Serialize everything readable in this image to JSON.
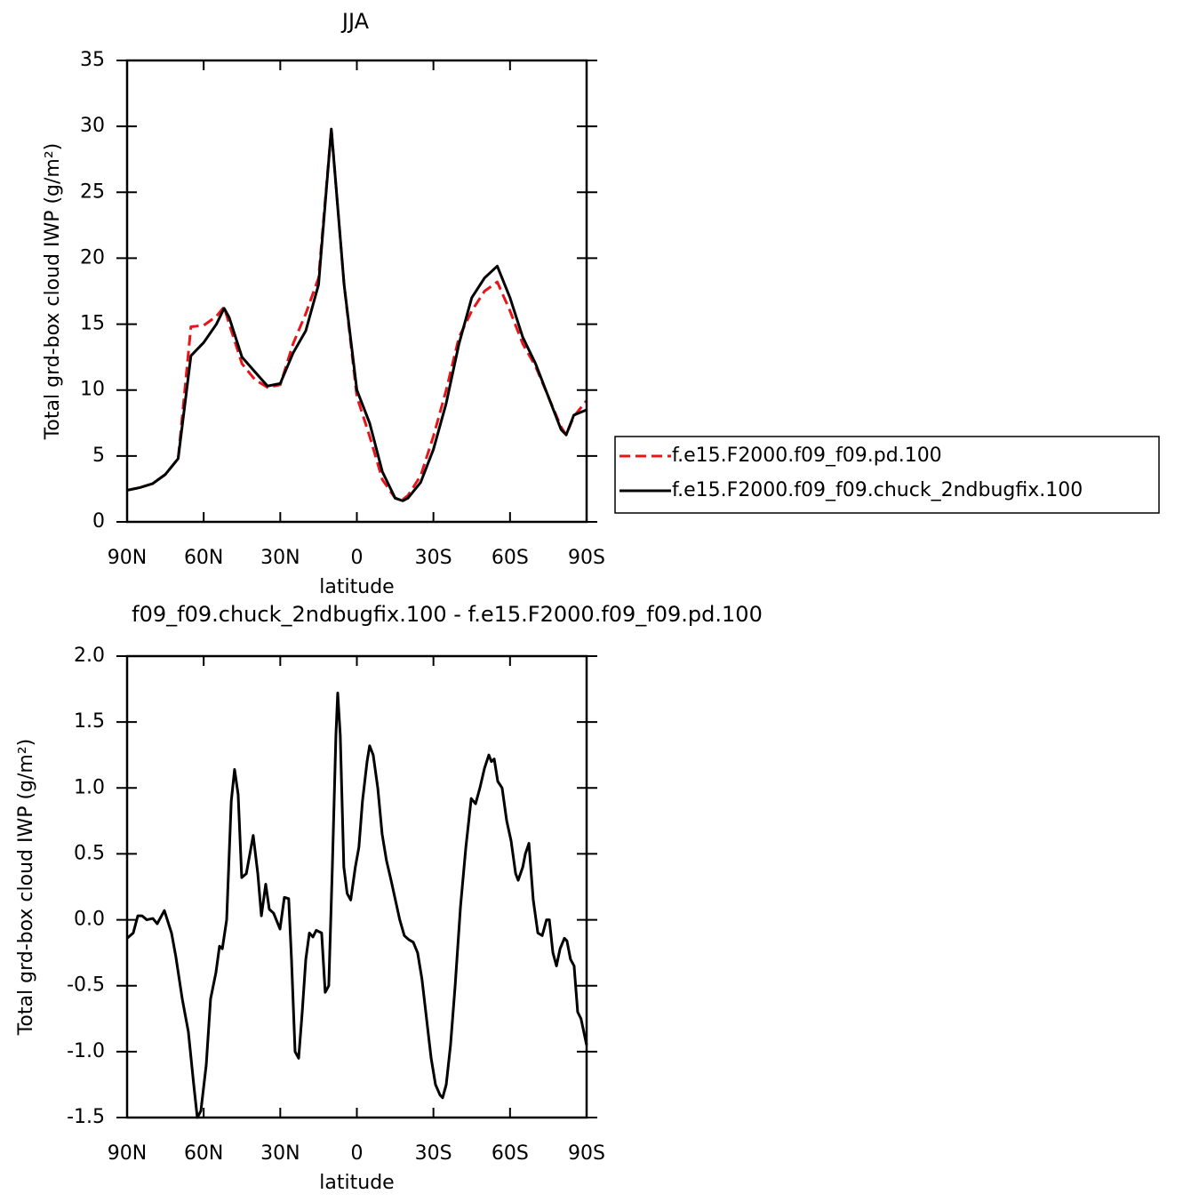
{
  "chart_data": [
    {
      "type": "line",
      "title": "JJA",
      "xlabel": "latitude",
      "ylabel": "Total grd-box cloud IWP (g/m²)",
      "x": [
        90,
        85,
        80,
        75,
        70,
        65,
        60,
        55,
        52,
        50,
        45,
        40,
        35,
        30,
        25,
        20,
        15,
        10,
        5,
        0,
        -5,
        -10,
        -15,
        -18,
        -20,
        -25,
        -30,
        -35,
        -40,
        -45,
        -50,
        -55,
        -60,
        -65,
        -70,
        -75,
        -80,
        -82,
        -85,
        -90
      ],
      "series": [
        {
          "name": "f.e15.F2000.f09_f09.pd.100",
          "color": "#e8141a",
          "dash": true,
          "values": [
            2.4,
            2.6,
            2.9,
            3.6,
            4.8,
            14.8,
            14.9,
            15.6,
            16.3,
            15.0,
            12.0,
            10.8,
            10.2,
            10.4,
            13.5,
            15.8,
            18.5,
            29.8,
            18,
            9.5,
            6.5,
            3.2,
            1.8,
            1.7,
            2.0,
            3.5,
            6.5,
            10,
            14,
            16,
            17.5,
            18.2,
            16,
            13.5,
            11.8,
            9.5,
            7.2,
            6.6,
            8.0,
            9.2
          ]
        },
        {
          "name": "f.e15.F2000.f09_f09.chuck_2ndbugfix.100",
          "color": "#000000",
          "dash": false,
          "values": [
            2.4,
            2.6,
            2.9,
            3.6,
            4.8,
            12.6,
            13.6,
            15.0,
            16.2,
            15.5,
            12.5,
            11.4,
            10.3,
            10.5,
            12.8,
            14.5,
            18,
            29.8,
            18,
            10,
            7.5,
            3.8,
            1.8,
            1.6,
            1.8,
            3.0,
            5.5,
            9,
            13.5,
            17,
            18.5,
            19.4,
            17,
            14,
            12,
            9.5,
            7,
            6.6,
            8.1,
            8.5
          ]
        }
      ],
      "xlim": [
        90,
        -90
      ],
      "xticks": [
        {
          "value": 90,
          "label": "90N"
        },
        {
          "value": 60,
          "label": "60N"
        },
        {
          "value": 30,
          "label": "30N"
        },
        0,
        {
          "value": -30,
          "label": "30S"
        },
        {
          "value": -60,
          "label": "60S"
        },
        {
          "value": -90,
          "label": "90S"
        }
      ],
      "ylim": [
        0,
        35
      ],
      "yticks": [
        0,
        5,
        10,
        15,
        20,
        25,
        30,
        35
      ],
      "legend": "right"
    },
    {
      "type": "line",
      "title": "f09_f09.chuck_2ndbugfix.100 - f.e15.F2000.f09_f09.pd.100",
      "xlabel": "latitude",
      "ylabel": "Total grd-box cloud IWP (g/m²)",
      "x": [
        90,
        87.6,
        85.8,
        84.1,
        82.3,
        79.9,
        78.2,
        75.4,
        72.6,
        70.9,
        68.4,
        66.0,
        63.9,
        62.5,
        61.1,
        59.0,
        57.3,
        55.2,
        53.8,
        52.7,
        51.0,
        49.2,
        47.9,
        46.5,
        45.1,
        43.3,
        40.6,
        38.8,
        37.4,
        35.7,
        34.3,
        32.6,
        30.1,
        28.4,
        26.7,
        25.6,
        24.2,
        22.8,
        21.4,
        20.0,
        18.6,
        17.2,
        15.9,
        13.8,
        12.4,
        11.0,
        9.6,
        8.2,
        7.5,
        6.5,
        5.1,
        3.8,
        2.4,
        0.6,
        -0.8,
        -2.2,
        -4.0,
        -5.0,
        -6.4,
        -8.2,
        -9.9,
        -11.6,
        -13.4,
        -15.1,
        -16.8,
        -18.6,
        -20.3,
        -22.1,
        -23.8,
        -25.5,
        -27.3,
        -29.1,
        -30.8,
        -32.6,
        -33.6,
        -35.0,
        -36.7,
        -38.5,
        -40.6,
        -42.7,
        -44.8,
        -46.5,
        -48.2,
        -50.0,
        -51.7,
        -52.7,
        -53.8,
        -55.2,
        -56.9,
        -58.7,
        -60.4,
        -62.2,
        -63.2,
        -65.0,
        -66.0,
        -67.4,
        -69.1,
        -70.9,
        -72.6,
        -74.3,
        -75.4,
        -76.8,
        -78.2,
        -79.6,
        -81.3,
        -82.3,
        -83.7,
        -85.1,
        -86.5,
        -87.8,
        -90
      ],
      "series": [
        {
          "color": "#000000",
          "values": [
            -0.14,
            -0.1,
            0.03,
            0.03,
            0.0,
            0.01,
            -0.03,
            0.07,
            -0.1,
            -0.28,
            -0.6,
            -0.85,
            -1.25,
            -1.5,
            -1.45,
            -1.1,
            -0.6,
            -0.4,
            -0.2,
            -0.22,
            0.0,
            0.9,
            1.14,
            0.95,
            0.32,
            0.35,
            0.64,
            0.35,
            0.03,
            0.27,
            0.08,
            0.05,
            -0.07,
            0.17,
            0.16,
            -0.3,
            -1.0,
            -1.05,
            -0.7,
            -0.3,
            -0.1,
            -0.13,
            -0.08,
            -0.1,
            -0.55,
            -0.5,
            0.4,
            1.4,
            1.72,
            1.4,
            0.4,
            0.2,
            0.15,
            0.4,
            0.55,
            0.9,
            1.2,
            1.32,
            1.25,
            1.0,
            0.65,
            0.45,
            0.3,
            0.15,
            0.0,
            -0.12,
            -0.15,
            -0.17,
            -0.25,
            -0.45,
            -0.75,
            -1.05,
            -1.25,
            -1.33,
            -1.35,
            -1.25,
            -0.95,
            -0.5,
            0.1,
            0.55,
            0.92,
            0.88,
            1.0,
            1.15,
            1.25,
            1.2,
            1.22,
            1.05,
            1.0,
            0.75,
            0.6,
            0.35,
            0.3,
            0.4,
            0.5,
            0.58,
            0.15,
            -0.1,
            -0.12,
            0.0,
            0.0,
            -0.25,
            -0.35,
            -0.22,
            -0.14,
            -0.16,
            -0.3,
            -0.35,
            -0.7,
            -0.75,
            -0.95
          ]
        }
      ],
      "xlim": [
        90,
        -90
      ],
      "xticks": [
        {
          "value": 90,
          "label": "90N"
        },
        {
          "value": 60,
          "label": "60N"
        },
        {
          "value": 30,
          "label": "30N"
        },
        0,
        {
          "value": -30,
          "label": "30S"
        },
        {
          "value": -60,
          "label": "60S"
        },
        {
          "value": -90,
          "label": "90S"
        }
      ],
      "ylim": [
        -1.5,
        2.0
      ],
      "yticks": [
        -1.5,
        {
          "value": -1,
          "label": "-1.0"
        },
        -0.5,
        {
          "value": 0,
          "label": "0.0"
        },
        0.5,
        {
          "value": 1,
          "label": "1.0"
        },
        1.5,
        {
          "value": 2,
          "label": "2.0"
        }
      ]
    }
  ]
}
